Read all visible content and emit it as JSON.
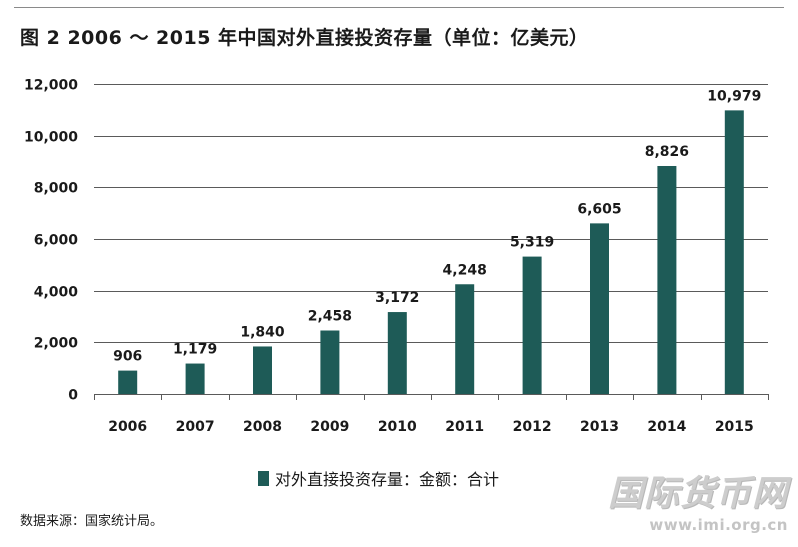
{
  "title": "图 2  2006 ～ 2015 年中国对外直接投资存量（单位：亿美元）",
  "source": "数据来源：国家统计局。",
  "watermark": {
    "logo": "国际货币网",
    "url": "www.imi.org.cn"
  },
  "colors": {
    "bar": "#1e5b57",
    "grid": "#5a5a5a",
    "text": "#1a1a1a"
  },
  "chart_data": {
    "type": "bar",
    "title": "图 2  2006 ～ 2015 年中国对外直接投资存量（单位：亿美元）",
    "xlabel": "",
    "ylabel": "",
    "categories": [
      "2006",
      "2007",
      "2008",
      "2009",
      "2010",
      "2011",
      "2012",
      "2013",
      "2014",
      "2015"
    ],
    "series": [
      {
        "name": "对外直接投资存量：金额：合计",
        "values": [
          906,
          1179,
          1840,
          2458,
          3172,
          4248,
          5319,
          6605,
          8826,
          10979
        ]
      }
    ],
    "data_labels": [
      "906",
      "1,179",
      "1,840",
      "2,458",
      "3,172",
      "4,248",
      "5,319",
      "6,605",
      "8,826",
      "10,979"
    ],
    "y_ticks": [
      0,
      2000,
      4000,
      6000,
      8000,
      10000,
      12000
    ],
    "y_tick_labels": [
      "0",
      "2,000",
      "4,000",
      "6,000",
      "8,000",
      "10,000",
      "12,000"
    ],
    "ylim": [
      0,
      12000
    ],
    "grid": true,
    "legend_position": "bottom-center"
  }
}
